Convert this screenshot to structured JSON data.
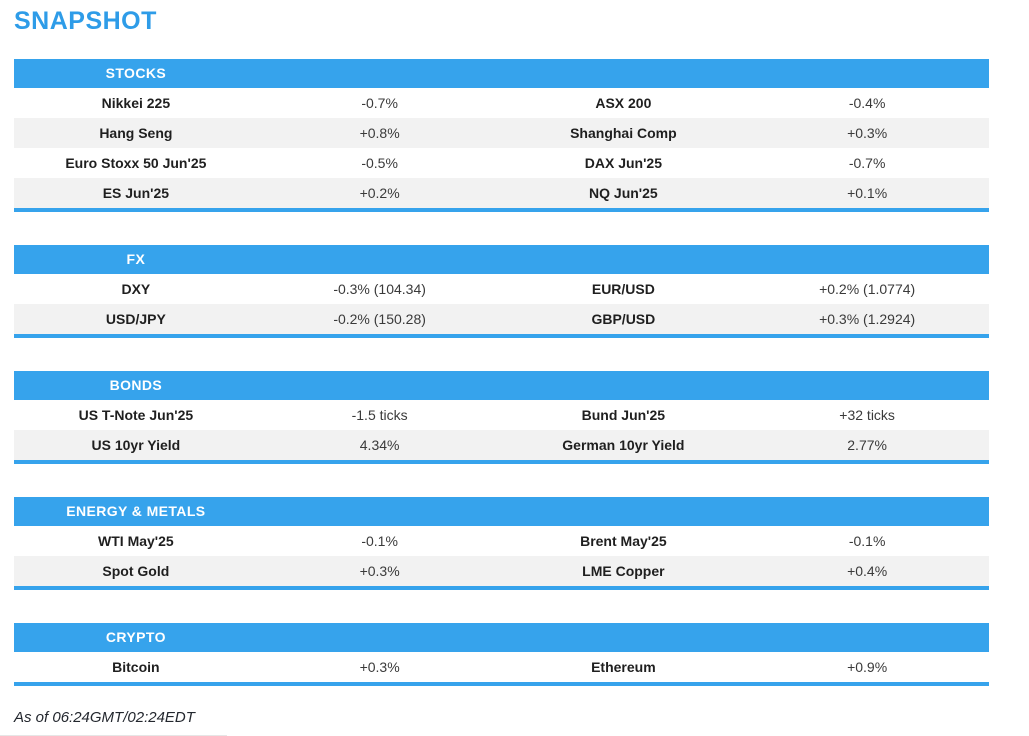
{
  "page": {
    "title": "SNAPSHOT",
    "footer": "As of 06:24GMT/02:24EDT"
  },
  "colors": {
    "accent_blue": "#36a3ec",
    "title_blue": "#2e9ce8",
    "row_stripe_gray": "#f2f2f2",
    "label_text": "#1f1f1f",
    "value_text": "#3a3a3a"
  },
  "sections": [
    {
      "header": "STOCKS",
      "rows": [
        {
          "label1": "Nikkei 225",
          "value1": "-0.7%",
          "label2": "ASX 200",
          "value2": "-0.4%"
        },
        {
          "label1": "Hang Seng",
          "value1": "+0.8%",
          "label2": "Shanghai Comp",
          "value2": "+0.3%"
        },
        {
          "label1": "Euro Stoxx 50 Jun'25",
          "value1": "-0.5%",
          "label2": "DAX Jun'25",
          "value2": "-0.7%"
        },
        {
          "label1": "ES Jun'25",
          "value1": "+0.2%",
          "label2": "NQ Jun'25",
          "value2": "+0.1%"
        }
      ]
    },
    {
      "header": "FX",
      "rows": [
        {
          "label1": "DXY",
          "value1": "-0.3% (104.34)",
          "label2": "EUR/USD",
          "value2": "+0.2% (1.0774)"
        },
        {
          "label1": "USD/JPY",
          "value1": "-0.2% (150.28)",
          "label2": "GBP/USD",
          "value2": "+0.3% (1.2924)"
        }
      ]
    },
    {
      "header": "BONDS",
      "rows": [
        {
          "label1": "US T-Note Jun'25",
          "value1": "-1.5 ticks",
          "label2": "Bund Jun'25",
          "value2": "+32 ticks"
        },
        {
          "label1": "US 10yr Yield",
          "value1": "4.34%",
          "label2": "German 10yr Yield",
          "value2": "2.77%"
        }
      ]
    },
    {
      "header": "ENERGY & METALS",
      "rows": [
        {
          "label1": "WTI May'25",
          "value1": "-0.1%",
          "label2": "Brent May'25",
          "value2": "-0.1%"
        },
        {
          "label1": "Spot Gold",
          "value1": "+0.3%",
          "label2": "LME Copper",
          "value2": "+0.4%"
        }
      ]
    },
    {
      "header": "CRYPTO",
      "rows": [
        {
          "label1": "Bitcoin",
          "value1": "+0.3%",
          "label2": "Ethereum",
          "value2": "+0.9%"
        }
      ]
    }
  ]
}
